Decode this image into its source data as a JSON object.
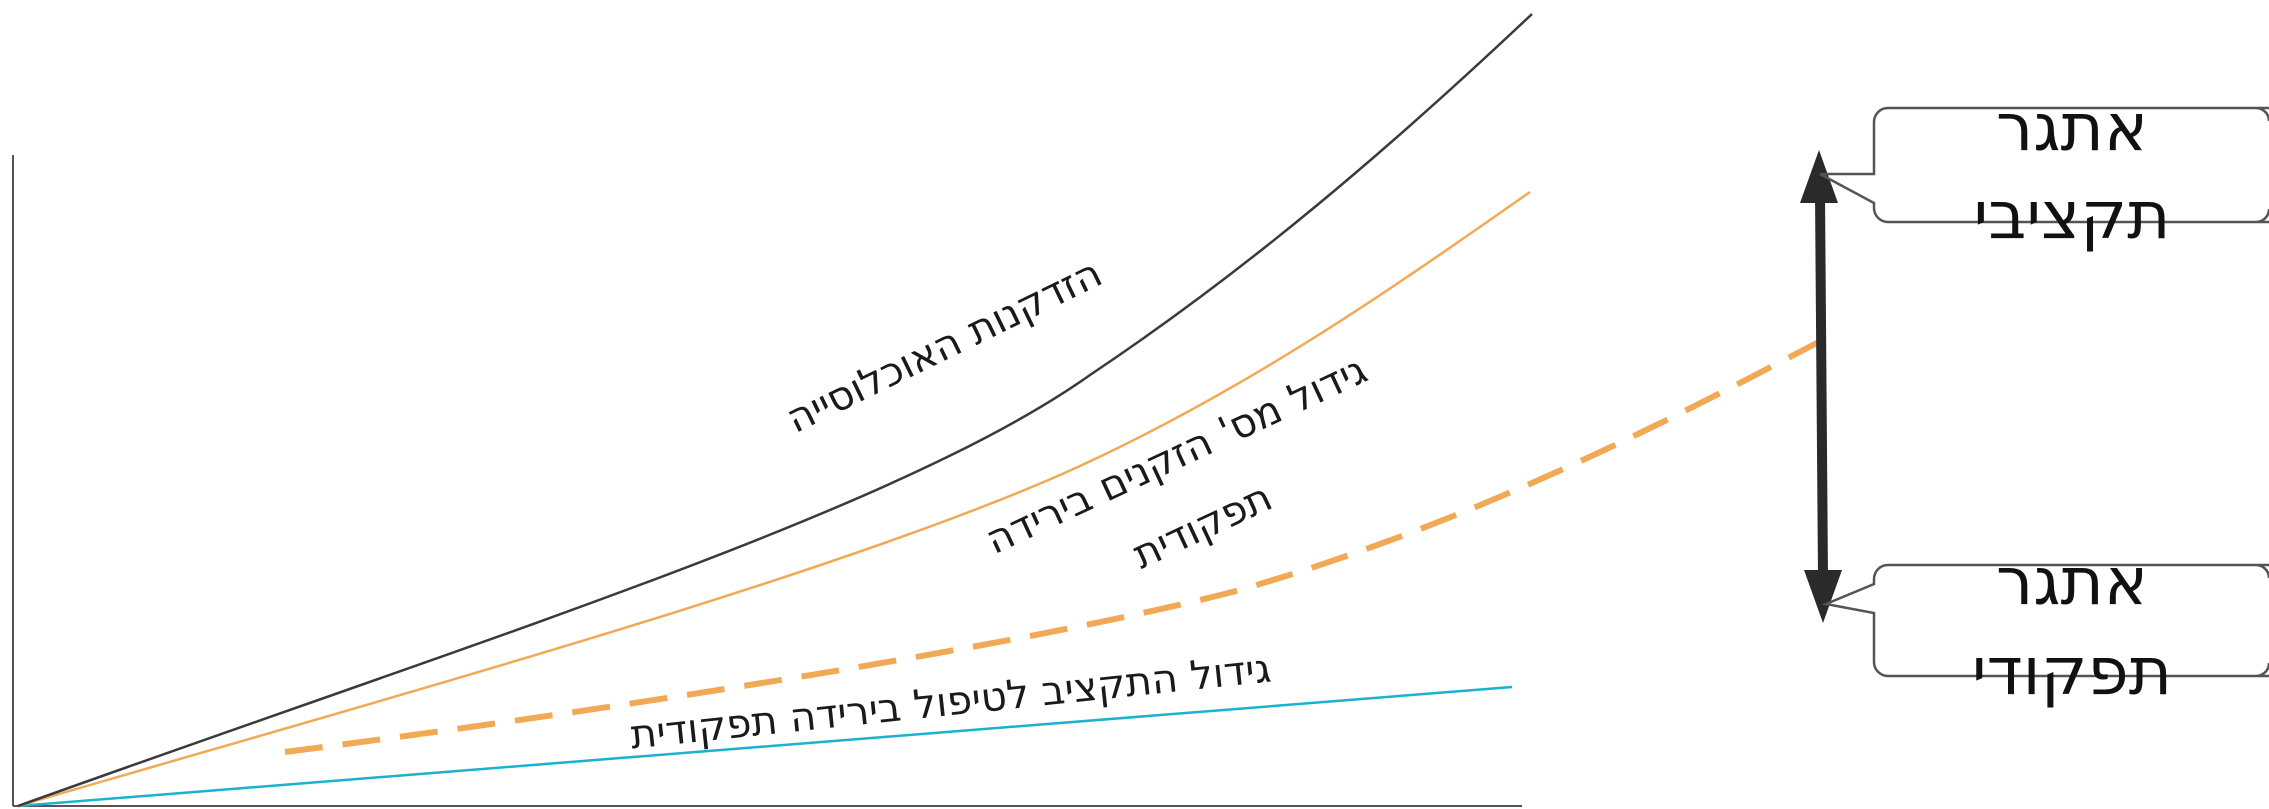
{
  "curves": {
    "population_aging": {
      "label": "הזדקנות האוכלוסייה",
      "color": "#3a3a3a"
    },
    "elderly_functional_decline": {
      "label_line1": "גידול מס' הזקנים בירידה",
      "label_line2": "תפקודית",
      "color": "#f2a955"
    },
    "target_dashed": {
      "color": "#f2a955"
    },
    "budget_growth": {
      "label": "גידול התקציב לטיפול בירידה תפקודית",
      "color": "#1ab2cf"
    }
  },
  "arrow": {
    "color": "#2a2a2a"
  },
  "callouts": {
    "budget_challenge": {
      "line1": "אתגר",
      "line2": "תקציבי"
    },
    "functional_challenge": {
      "line1": "אתגר",
      "line2": "תפקודי"
    }
  },
  "axis_color": "#555555"
}
